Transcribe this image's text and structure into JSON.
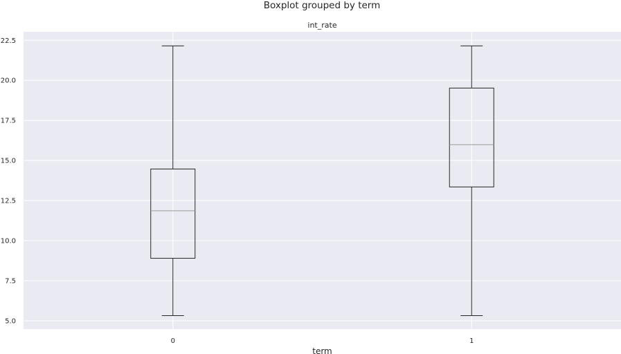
{
  "figure": {
    "suptitle": "Boxplot grouped by term"
  },
  "chart_data": {
    "type": "box",
    "title": "int_rate",
    "xlabel": "term",
    "ylabel": "",
    "categories": [
      "0",
      "1"
    ],
    "boxes": [
      {
        "category": "0",
        "whisker_low": 5.32,
        "q1": 8.9,
        "median": 11.86,
        "q3": 14.47,
        "whisker_high": 22.15
      },
      {
        "category": "1",
        "whisker_low": 5.32,
        "q1": 13.35,
        "median": 15.99,
        "q3": 19.52,
        "whisker_high": 22.15
      }
    ],
    "yticks": [
      5.0,
      7.5,
      10.0,
      12.5,
      15.0,
      17.5,
      20.0,
      22.5
    ],
    "ytick_labels": [
      "5.0",
      "7.5",
      "10.0",
      "12.5",
      "15.0",
      "17.5",
      "20.0",
      "22.5"
    ],
    "ylim": [
      4.48,
      23.03
    ],
    "grid": true,
    "colors": {
      "background": "#EAEAF2",
      "grid": "#FFFFFF",
      "box": "#262626",
      "median": "#9A9A9A"
    }
  }
}
